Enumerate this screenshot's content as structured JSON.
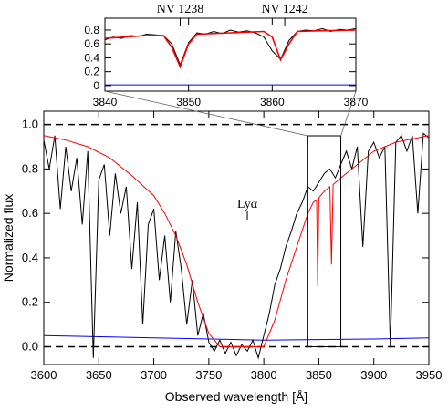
{
  "chart_data": [
    {
      "type": "line",
      "xlabel": "Observed wavelength  [Å]",
      "ylabel": "Normalized flux",
      "xlim": [
        3600,
        3950
      ],
      "ylim": [
        -0.08,
        1.06
      ],
      "xticks": [
        3600,
        3650,
        3700,
        3750,
        3800,
        3850,
        3900,
        3950
      ],
      "yticks": [
        {
          "value": 0,
          "label": "0.0"
        },
        0.2,
        0.4,
        0.6,
        0.8,
        {
          "value": 1,
          "label": "1.0"
        }
      ],
      "hlines": [
        0,
        1
      ],
      "annotations": [
        {
          "text": "Lyα",
          "x": 3785
        }
      ],
      "series": [
        {
          "color": "#000000",
          "x": [
            3600,
            3605,
            3610,
            3615,
            3620,
            3625,
            3630,
            3635,
            3640,
            3645,
            3650,
            3655,
            3660,
            3665,
            3670,
            3675,
            3680,
            3685,
            3690,
            3695,
            3700,
            3705,
            3710,
            3715,
            3720,
            3725,
            3730,
            3735,
            3740,
            3745,
            3750,
            3755,
            3760,
            3765,
            3770,
            3775,
            3780,
            3785,
            3790,
            3795,
            3800,
            3805,
            3810,
            3815,
            3820,
            3825,
            3830,
            3835,
            3840,
            3845,
            3850,
            3855,
            3860,
            3865,
            3870,
            3875,
            3880,
            3885,
            3890,
            3895,
            3900,
            3905,
            3910,
            3915,
            3920,
            3925,
            3930,
            3935,
            3940,
            3945,
            3950
          ],
          "values": [
            0.93,
            0.8,
            0.95,
            0.62,
            0.9,
            0.7,
            0.85,
            0.55,
            0.88,
            -0.05,
            0.75,
            0.82,
            0.5,
            0.78,
            0.6,
            0.72,
            0.35,
            0.65,
            0.1,
            0.55,
            0.62,
            0.3,
            0.5,
            0.2,
            0.52,
            0.35,
            0.1,
            0.3,
            0.05,
            0.15,
            0.02,
            -0.02,
            0.03,
            -0.03,
            0.02,
            -0.04,
            0.01,
            -0.02,
            0.03,
            -0.05,
            0.05,
            0.15,
            0.28,
            0.35,
            0.45,
            0.52,
            0.6,
            0.65,
            0.72,
            0.7,
            0.74,
            0.78,
            0.8,
            0.76,
            0.82,
            0.88,
            0.8,
            0.9,
            0.45,
            0.88,
            0.92,
            0.85,
            0.9,
            0.0,
            0.92,
            0.95,
            0.88,
            0.95,
            0.6,
            0.96,
            0.94
          ]
        },
        {
          "color": "#ff0000",
          "x": [
            3600,
            3620,
            3640,
            3660,
            3680,
            3700,
            3710,
            3720,
            3730,
            3740,
            3750,
            3760,
            3780,
            3800,
            3810,
            3820,
            3830,
            3840,
            3845,
            3848,
            3849,
            3850,
            3855,
            3860,
            3861.5,
            3863,
            3870,
            3880,
            3900,
            3920,
            3950
          ],
          "values": [
            0.95,
            0.93,
            0.9,
            0.85,
            0.77,
            0.68,
            0.6,
            0.5,
            0.37,
            0.2,
            0.06,
            0.0,
            0.0,
            0.0,
            0.12,
            0.3,
            0.45,
            0.6,
            0.65,
            0.66,
            0.27,
            0.67,
            0.7,
            0.72,
            0.37,
            0.73,
            0.76,
            0.8,
            0.88,
            0.92,
            0.95
          ]
        },
        {
          "color": "#0000ff",
          "x": [
            3600,
            3700,
            3800,
            3900,
            3950
          ],
          "values": [
            0.05,
            0.04,
            0.03,
            0.035,
            0.04
          ]
        }
      ]
    },
    {
      "type": "line",
      "xlim": [
        3840,
        3870
      ],
      "ylim": [
        -0.08,
        0.97
      ],
      "xticks": [
        3840,
        3850,
        3860,
        3870
      ],
      "yticks": [
        0,
        0.2,
        0.4,
        0.6,
        0.8
      ],
      "annotations": [
        {
          "text": "NV 1238",
          "x": 3849
        },
        {
          "text": "NV 1242",
          "x": 3861.5
        }
      ],
      "series": [
        {
          "color": "#000000",
          "x": [
            3840,
            3841,
            3842,
            3843,
            3844,
            3845,
            3846,
            3847,
            3848,
            3849,
            3850,
            3851,
            3852,
            3853,
            3854,
            3855,
            3856,
            3857,
            3858,
            3859,
            3860,
            3861,
            3862,
            3863,
            3864,
            3865,
            3866,
            3867,
            3868,
            3869,
            3870
          ],
          "values": [
            0.66,
            0.7,
            0.68,
            0.72,
            0.71,
            0.74,
            0.73,
            0.72,
            0.6,
            0.3,
            0.62,
            0.76,
            0.74,
            0.78,
            0.75,
            0.8,
            0.77,
            0.79,
            0.76,
            0.7,
            0.5,
            0.38,
            0.65,
            0.78,
            0.8,
            0.79,
            0.82,
            0.78,
            0.81,
            0.8,
            0.82
          ]
        },
        {
          "color": "#ff0000",
          "x": [
            3840,
            3845,
            3847,
            3848,
            3849,
            3850,
            3851,
            3855,
            3859,
            3860,
            3861,
            3862,
            3863,
            3866,
            3870
          ],
          "values": [
            0.68,
            0.72,
            0.72,
            0.55,
            0.27,
            0.6,
            0.74,
            0.76,
            0.78,
            0.7,
            0.37,
            0.6,
            0.78,
            0.79,
            0.8
          ]
        },
        {
          "color": "#0000ff",
          "x": [
            3840,
            3870
          ],
          "values": [
            0.01,
            0.01
          ]
        }
      ]
    }
  ]
}
